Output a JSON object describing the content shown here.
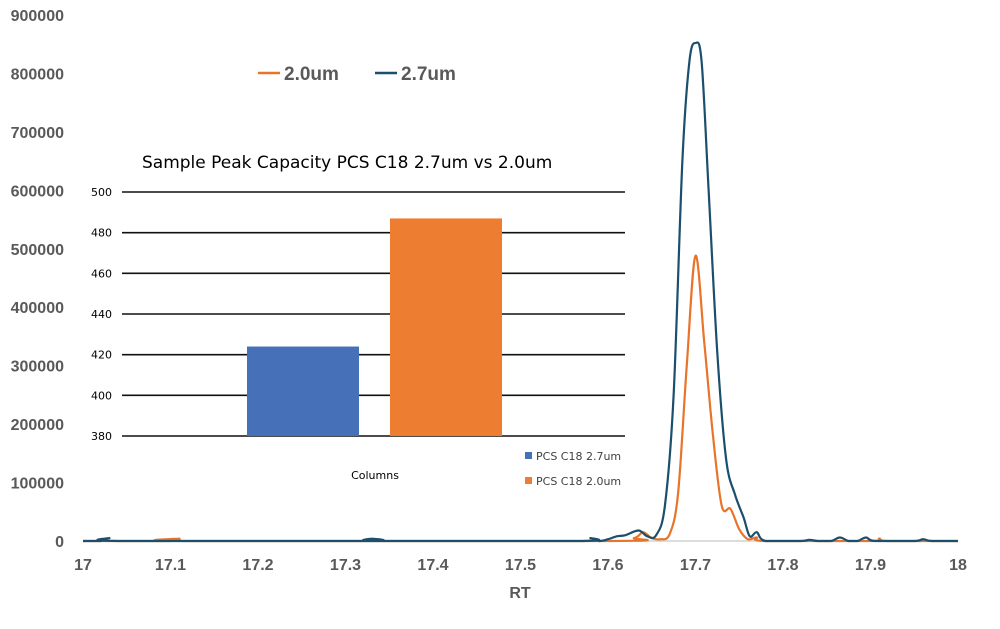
{
  "chart_data": [
    {
      "type": "line",
      "xlabel": "RT",
      "ylabel": "",
      "xlim": [
        17,
        18
      ],
      "ylim": [
        0,
        900000
      ],
      "x_ticks": [
        "17",
        "17.1",
        "17.2",
        "17.3",
        "17.4",
        "17.5",
        "17.6",
        "17.7",
        "17.8",
        "17.9",
        "18"
      ],
      "y_ticks": [
        "0",
        "100000",
        "200000",
        "300000",
        "400000",
        "500000",
        "600000",
        "700000",
        "800000",
        "900000"
      ],
      "grid": false,
      "legend_position": "top-left",
      "series": [
        {
          "name": "2.0um",
          "color": "#E8742A",
          "x": [
            17.0,
            17.1,
            17.11,
            17.12,
            17.6,
            17.63,
            17.64,
            17.65,
            17.66,
            17.67,
            17.68,
            17.69,
            17.7,
            17.71,
            17.72,
            17.73,
            17.74,
            17.75,
            17.76,
            17.77,
            17.78,
            17.9,
            17.91,
            17.92,
            18.0
          ],
          "y": [
            0,
            0,
            4000,
            0,
            0,
            5000,
            15000,
            5000,
            3000,
            10000,
            80000,
            300000,
            488000,
            340000,
            180000,
            60000,
            55000,
            20000,
            3000,
            6000,
            0,
            0,
            4000,
            0,
            0
          ]
        },
        {
          "name": "2.7um",
          "color": "#1B4F6E",
          "x": [
            17.0,
            17.02,
            17.03,
            17.04,
            17.32,
            17.33,
            17.34,
            17.57,
            17.58,
            17.59,
            17.6,
            17.61,
            17.62,
            17.635,
            17.645,
            17.655,
            17.665,
            17.675,
            17.685,
            17.693,
            17.7,
            17.707,
            17.715,
            17.725,
            17.735,
            17.745,
            17.755,
            17.762,
            17.77,
            17.78,
            17.82,
            17.83,
            17.84,
            17.855,
            17.865,
            17.875,
            17.885,
            17.895,
            17.905,
            17.95,
            17.96,
            17.97,
            18.0
          ],
          "y": [
            0,
            0,
            5000,
            0,
            0,
            4000,
            0,
            0,
            5000,
            0,
            3000,
            8000,
            10000,
            18000,
            8000,
            10000,
            60000,
            250000,
            650000,
            820000,
            852000,
            820000,
            600000,
            320000,
            140000,
            80000,
            40000,
            8000,
            15000,
            0,
            0,
            2000,
            0,
            0,
            6000,
            0,
            0,
            6000,
            0,
            0,
            3000,
            0,
            0
          ]
        }
      ]
    },
    {
      "type": "bar",
      "title": "Sample Peak Capacity PCS C18 2.7um vs 2.0um",
      "xlabel": "Columns",
      "ylim": [
        380,
        500
      ],
      "y_ticks": [
        "500",
        "480",
        "460",
        "440",
        "420",
        "400",
        "380"
      ],
      "grid": true,
      "legend_position": "bottom-right",
      "series": [
        {
          "name": "PCS C18 2.7um",
          "color": "#4670B8",
          "values": [
            424
          ]
        },
        {
          "name": "PCS C18 2.0um",
          "color": "#ED7D31",
          "values": [
            487
          ]
        }
      ]
    }
  ]
}
